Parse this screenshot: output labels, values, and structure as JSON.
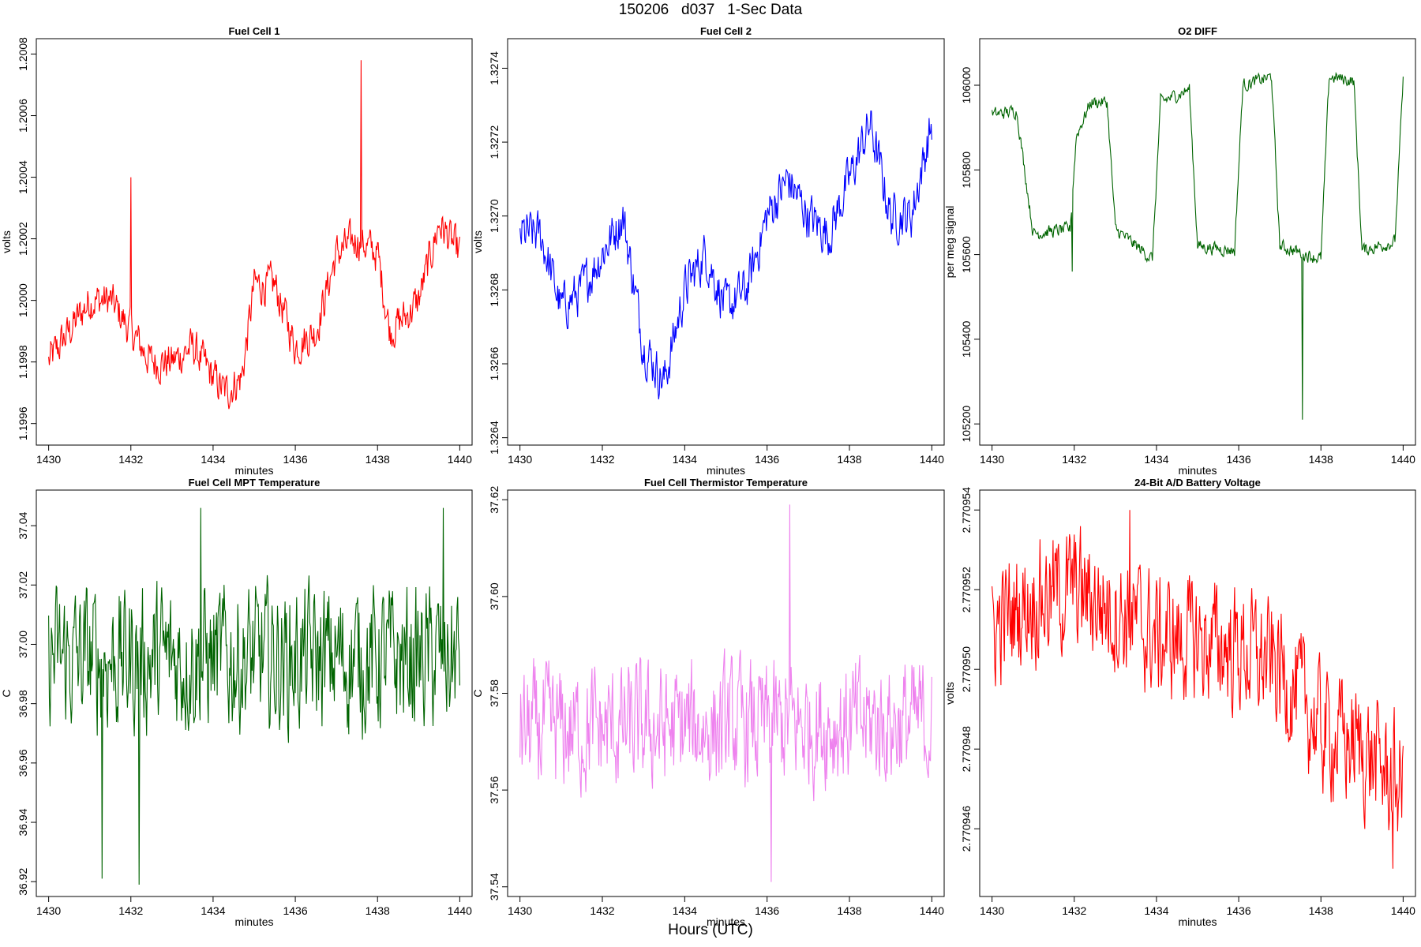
{
  "page": {
    "title": "150206   d037   1-Sec Data",
    "xlabel": "Hours (UTC)"
  },
  "chart_data": [
    {
      "type": "line",
      "title": "Fuel Cell 1",
      "xlabel": "minutes",
      "ylabel": "volts",
      "color": "#ff0000",
      "xlim": [
        1429.7,
        1440.3
      ],
      "ylim": [
        1.19953,
        1.20085
      ],
      "xticks": [
        1430,
        1432,
        1434,
        1436,
        1438,
        1440
      ],
      "yticks": [
        1.1996,
        1.1998,
        1.2,
        1.2002,
        1.2004,
        1.2006,
        1.2008
      ],
      "ytick_labels": [
        "1.1996",
        "1.1998",
        "1.2000",
        "1.2002",
        "1.2004",
        "1.2006",
        "1.2008"
      ],
      "series": [
        {
          "x": [
            1430,
            1430.5,
            1431,
            1431.5,
            1432,
            1432.5,
            1433,
            1433.5,
            1434,
            1434.3,
            1434.7,
            1435,
            1435.5,
            1436,
            1436.5,
            1437,
            1437.5,
            1438,
            1438.3,
            1438.7,
            1439,
            1439.5,
            1440
          ],
          "y": [
            1.1998,
            1.1999,
            1.2,
            1.2,
            1.1999,
            1.1998,
            1.1998,
            1.19985,
            1.19975,
            1.1997,
            1.19975,
            1.20005,
            1.20005,
            1.19985,
            1.1999,
            1.20015,
            1.2002,
            1.20015,
            1.1999,
            1.19995,
            1.2,
            1.20025,
            1.20015
          ],
          "noise": 9e-05
        }
      ],
      "spikes": [
        {
          "x": 1432.0,
          "y": 1.2004
        },
        {
          "x": 1437.6,
          "y": 1.20078
        }
      ]
    },
    {
      "type": "line",
      "title": "Fuel Cell 2",
      "xlabel": "minutes",
      "ylabel": "volts",
      "color": "#0000ff",
      "xlim": [
        1429.7,
        1440.3
      ],
      "ylim": [
        1.32638,
        1.32748
      ],
      "xticks": [
        1430,
        1432,
        1434,
        1436,
        1438,
        1440
      ],
      "yticks": [
        1.3264,
        1.3266,
        1.3268,
        1.327,
        1.3272,
        1.3274
      ],
      "ytick_labels": [
        "1.3264",
        "1.3266",
        "1.3268",
        "1.3270",
        "1.3272",
        "1.3274"
      ],
      "series": [
        {
          "x": [
            1430,
            1430.5,
            1431,
            1431.5,
            1432,
            1432.5,
            1433,
            1433.5,
            1434,
            1434.5,
            1435,
            1435.5,
            1436,
            1436.5,
            1437,
            1437.5,
            1438,
            1438.5,
            1439,
            1439.5,
            1440
          ],
          "y": [
            1.32695,
            1.32695,
            1.32675,
            1.3268,
            1.3269,
            1.327,
            1.32665,
            1.32655,
            1.3268,
            1.3269,
            1.32675,
            1.3268,
            1.327,
            1.3271,
            1.327,
            1.32695,
            1.3271,
            1.32725,
            1.327,
            1.327,
            1.32725
          ],
          "noise": 9e-05
        }
      ]
    },
    {
      "type": "line",
      "title": "O2 DIFF",
      "xlabel": "minutes",
      "ylabel": "per meg signal",
      "color": "#006400",
      "xlim": [
        1429.7,
        1440.3
      ],
      "ylim": [
        105150,
        106110
      ],
      "xticks": [
        1430,
        1432,
        1434,
        1436,
        1438,
        1440
      ],
      "yticks": [
        105200,
        105400,
        105600,
        105800,
        106000
      ],
      "ytick_labels": [
        "105200",
        "105400",
        "105600",
        "105800",
        "106000"
      ],
      "series": [
        {
          "x": [
            1430,
            1430.6,
            1431.0,
            1431.9,
            1432.05,
            1432.4,
            1432.8,
            1433.0,
            1433.9,
            1434.1,
            1434.8,
            1435.0,
            1435.9,
            1436.1,
            1436.8,
            1437.0,
            1438.0,
            1438.2,
            1438.8,
            1439.0,
            1439.8,
            1440.0
          ],
          "y": [
            105930,
            105940,
            105650,
            105660,
            105880,
            105960,
            105960,
            105660,
            105590,
            105960,
            105990,
            105620,
            105610,
            106000,
            106020,
            105620,
            105590,
            106020,
            106010,
            105610,
            105630,
            106010
          ],
          "noise": 22
        }
      ],
      "spikes": [
        {
          "x": 1431.95,
          "y": 105560
        },
        {
          "x": 1437.55,
          "y": 105210
        }
      ]
    },
    {
      "type": "line",
      "title": "Fuel Cell MPT Temperature",
      "xlabel": "minutes",
      "ylabel": "C",
      "color": "#006400",
      "xlim": [
        1429.7,
        1440.3
      ],
      "ylim": [
        36.915,
        37.052
      ],
      "xticks": [
        1430,
        1432,
        1434,
        1436,
        1438,
        1440
      ],
      "yticks": [
        36.92,
        36.94,
        36.96,
        36.98,
        37.0,
        37.02,
        37.04
      ],
      "ytick_labels": [
        "36.92",
        "36.94",
        "36.96",
        "36.98",
        "37.00",
        "37.02",
        "37.04"
      ],
      "series": [
        {
          "x": [
            1430,
            1440
          ],
          "y": [
            36.995,
            36.995
          ],
          "noise": 0.034
        }
      ],
      "spikes": [
        {
          "x": 1431.3,
          "y": 36.921
        },
        {
          "x": 1432.2,
          "y": 36.919
        },
        {
          "x": 1433.7,
          "y": 37.046
        },
        {
          "x": 1439.6,
          "y": 37.046
        }
      ]
    },
    {
      "type": "line",
      "title": "Fuel Cell Thermistor Temperature",
      "xlabel": "minutes",
      "ylabel": "C",
      "color": "#ee82ee",
      "xlim": [
        1429.7,
        1440.3
      ],
      "ylim": [
        37.538,
        37.622
      ],
      "xticks": [
        1430,
        1432,
        1434,
        1436,
        1438,
        1440
      ],
      "yticks": [
        37.54,
        37.56,
        37.58,
        37.6,
        37.62
      ],
      "ytick_labels": [
        "37.54",
        "37.56",
        "37.58",
        "37.60",
        "37.62"
      ],
      "series": [
        {
          "x": [
            1430,
            1440
          ],
          "y": [
            37.572,
            37.574
          ],
          "noise": 0.018
        }
      ],
      "spikes": [
        {
          "x": 1436.1,
          "y": 37.541
        },
        {
          "x": 1436.55,
          "y": 37.619
        }
      ]
    },
    {
      "type": "line",
      "title": "24-Bit A/D Battery Voltage",
      "xlabel": "minutes",
      "ylabel": "volts",
      "color": "#ff0000",
      "xlim": [
        1429.7,
        1440.3
      ],
      "ylim": [
        2.7709443,
        2.7709545
      ],
      "xticks": [
        1430,
        1432,
        1434,
        1436,
        1438,
        1440
      ],
      "yticks": [
        2.770946,
        2.770948,
        2.77095,
        2.770952,
        2.770954
      ],
      "ytick_labels": [
        "2.770946",
        "2.770948",
        "2.770950",
        "2.770952",
        "2.770954"
      ],
      "series": [
        {
          "x": [
            1430,
            1431,
            1432,
            1433,
            1434,
            1435,
            1436,
            1437,
            1438,
            1439,
            1440
          ],
          "y": [
            2.770951,
            2.7709518,
            2.770952,
            2.7709515,
            2.7709508,
            2.7709507,
            2.7709505,
            2.77095,
            2.7709485,
            2.770948,
            2.770947
          ],
          "noise": 2.2e-06
        }
      ],
      "spikes": [
        {
          "x": 1433.35,
          "y": 2.770954
        },
        {
          "x": 1439.75,
          "y": 2.770945
        }
      ]
    }
  ]
}
